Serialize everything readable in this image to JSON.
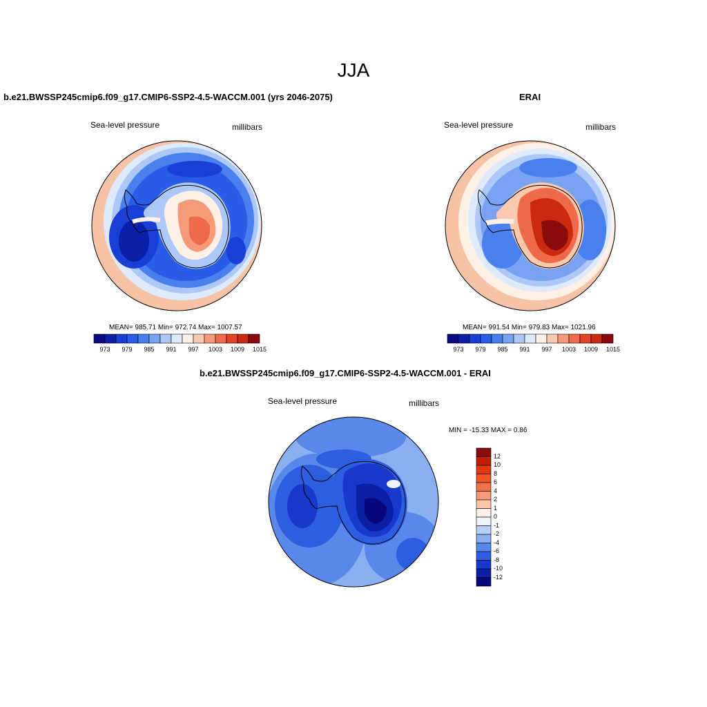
{
  "season_title": "JJA",
  "panels": {
    "model": {
      "title": "b.e21.BWSSP245cmip6.f09_g17.CMIP6-SSP2-4.5-WACCM.001 (yrs 2046-2075)",
      "variable": "Sea-level pressure",
      "units": "millibars",
      "stats": "MEAN= 985.71  Min= 972.74  Max= 1007.57"
    },
    "obs": {
      "title": "ERAI",
      "variable": "Sea-level pressure",
      "units": "millibars",
      "stats": "MEAN= 991.54  Min= 979.83  Max= 1021.96"
    },
    "diff": {
      "title": "b.e21.BWSSP245cmip6.f09_g17.CMIP6-SSP2-4.5-WACCM.001 - ERAI",
      "variable": "Sea-level pressure",
      "units": "millibars",
      "stats": "MIN = -15.33 MAX =   0.86"
    }
  },
  "colorbar_abs": {
    "colors": [
      "#0c0c82",
      "#0b20a8",
      "#1a3fd6",
      "#2a5ce8",
      "#4a7fee",
      "#7aa2f2",
      "#adc8f7",
      "#ddeafb",
      "#fff0e6",
      "#fbc9ad",
      "#f59a78",
      "#ef6a4a",
      "#e64426",
      "#cc2a10",
      "#8a0b0b"
    ],
    "labels": [
      "973",
      "979",
      "985",
      "991",
      "997",
      "1003",
      "1009",
      "1015"
    ]
  },
  "colorbar_diff": {
    "colors": [
      "#8a0b0b",
      "#c01e05",
      "#e03a0e",
      "#f25522",
      "#f0744a",
      "#f59a78",
      "#fbc6a8",
      "#fff0e6",
      "#eef3fc",
      "#b9d0f6",
      "#8aaff0",
      "#5a88ea",
      "#2e5ee0",
      "#1839cc",
      "#0b1fa5",
      "#07087e"
    ],
    "labels": [
      "12",
      "10",
      "8",
      "6",
      "4",
      "2",
      "1",
      "0",
      "-1",
      "-2",
      "-4",
      "-6",
      "-8",
      "-10",
      "-12"
    ]
  }
}
